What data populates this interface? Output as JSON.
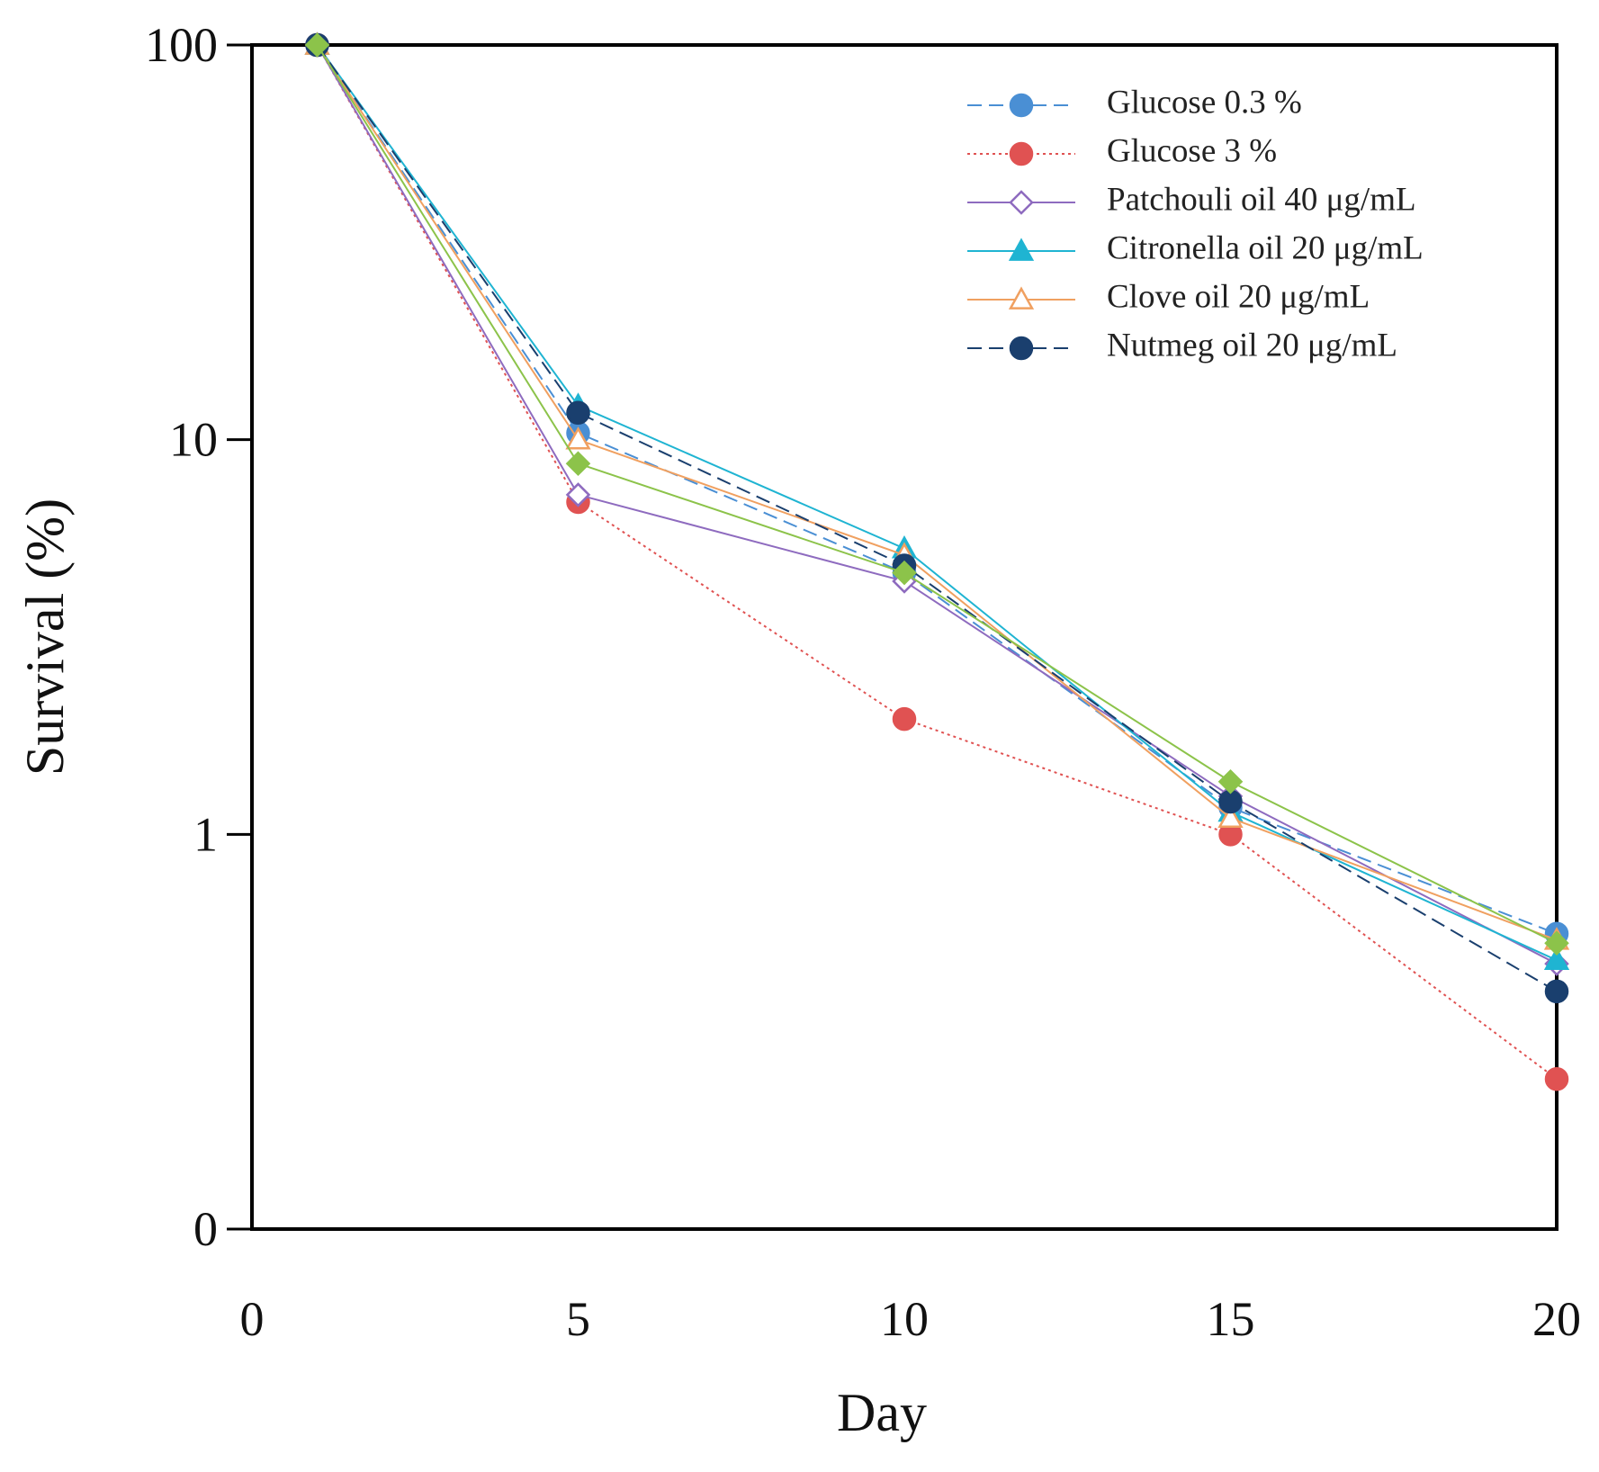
{
  "chart_data": {
    "type": "line",
    "xlabel": "Day",
    "ylabel": "Survival (%)",
    "xlim": [
      0,
      20
    ],
    "xticks": [
      0,
      5,
      10,
      15,
      20
    ],
    "ylim": [
      0.1,
      100
    ],
    "yticks": [
      {
        "value": 0.1,
        "label": "0"
      },
      1,
      10,
      100
    ],
    "ylog": true,
    "legend": "upper right",
    "x": [
      1,
      5,
      10,
      15,
      20
    ],
    "series": [
      {
        "name": "Glucose 0.3 %",
        "color": "#4a8fd4",
        "dash": "dashed",
        "marker": "circle",
        "filled": true,
        "values": [
          100,
          10.4,
          4.6,
          1.17,
          0.56
        ]
      },
      {
        "name": "Glucose 3 %",
        "color": "#e05252",
        "dash": "dotted",
        "marker": "circle",
        "filled": true,
        "values": [
          100,
          6.95,
          1.96,
          1.0,
          0.24
        ]
      },
      {
        "name": "Patchouli oil 40 μg/mL",
        "color": "#8e6bbf",
        "dash": "solid",
        "marker": "diamond",
        "filled": false,
        "values": [
          100,
          7.25,
          4.38,
          1.25,
          0.47
        ]
      },
      {
        "name": "Citronella oil 20 μg/mL",
        "color": "#1fb4d2",
        "dash": "solid",
        "marker": "triangle",
        "filled": true,
        "values": [
          100,
          12.2,
          5.3,
          1.14,
          0.48
        ]
      },
      {
        "name": "Clove oil 20 μg/mL",
        "color": "#f0a060",
        "dash": "solid",
        "marker": "triangle",
        "filled": false,
        "values": [
          100,
          10,
          5.1,
          1.1,
          0.54
        ]
      },
      {
        "name": "Nutmeg oil 20 μg/mL",
        "color": "#1a3f6e",
        "dash": "dashed",
        "marker": "circle",
        "filled": true,
        "values": [
          100,
          11.7,
          4.8,
          1.21,
          0.4
        ]
      },
      {
        "color": "#8cc34a",
        "dash": "solid",
        "marker": "diamond",
        "filled": true,
        "values": [
          100,
          8.7,
          4.6,
          1.36,
          0.53
        ]
      }
    ]
  }
}
